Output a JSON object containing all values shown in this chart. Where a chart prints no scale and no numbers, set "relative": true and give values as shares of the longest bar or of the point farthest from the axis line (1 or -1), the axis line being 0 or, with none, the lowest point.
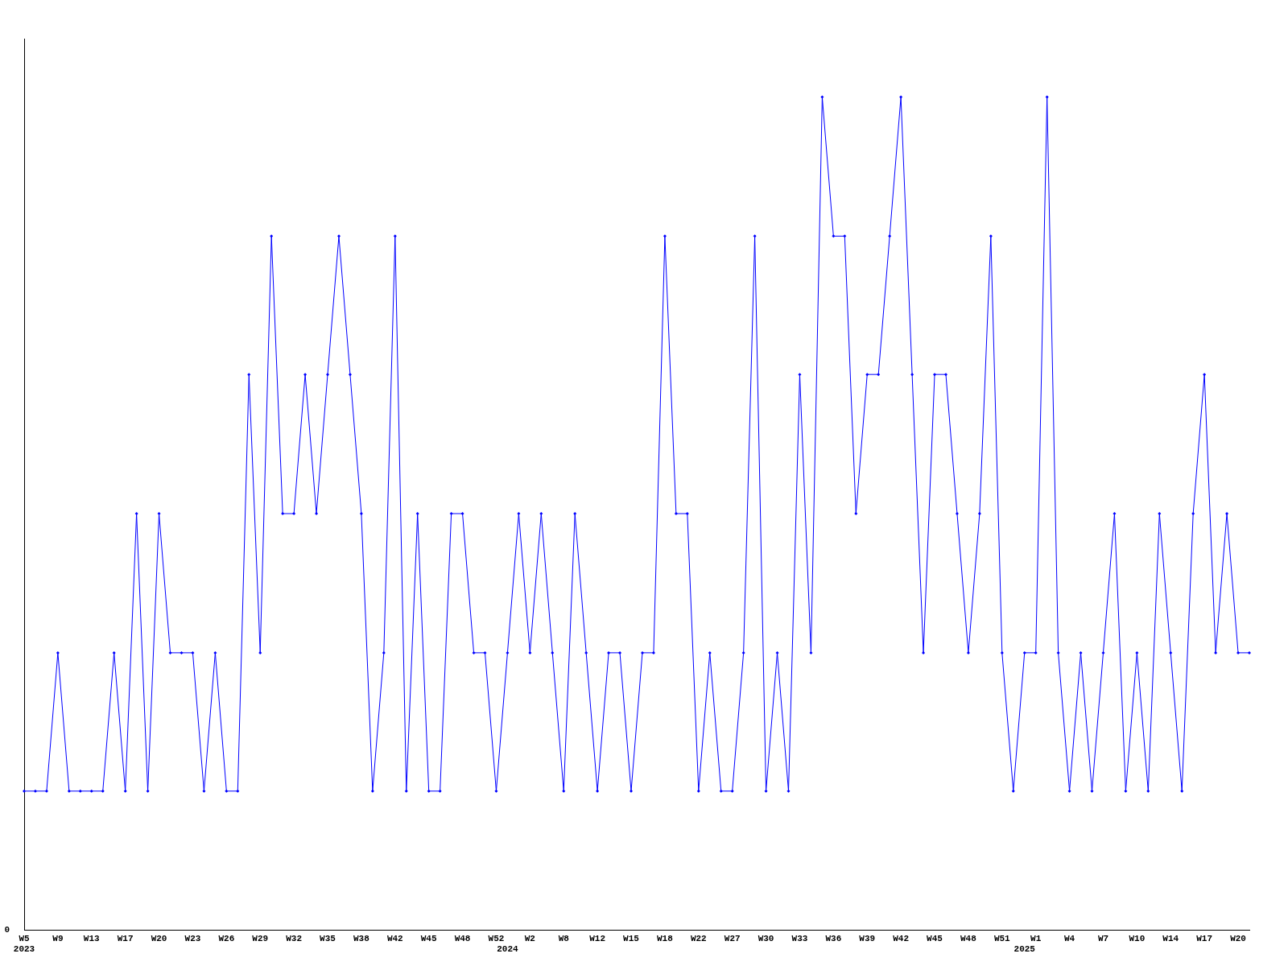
{
  "chart_data": {
    "type": "line",
    "relative": true,
    "color": "#0000ff",
    "marker": "diamond",
    "line_style": "solid",
    "grid": false,
    "legend": false,
    "categories": [
      "W5\n2023",
      null,
      null,
      "W9",
      null,
      null,
      "W13",
      null,
      null,
      "W17",
      null,
      null,
      "W20",
      null,
      null,
      "W23",
      null,
      null,
      "W26",
      null,
      null,
      "W29",
      null,
      null,
      "W32",
      null,
      null,
      "W35",
      null,
      null,
      "W38",
      null,
      null,
      "W42",
      null,
      null,
      "W45",
      null,
      null,
      "W48",
      null,
      null,
      "W52",
      "\n2024",
      null,
      "W2",
      null,
      null,
      "W8",
      null,
      null,
      "W12",
      null,
      null,
      "W15",
      null,
      null,
      "W18",
      null,
      null,
      "W22",
      null,
      null,
      "W27",
      null,
      null,
      "W30",
      null,
      null,
      "W33",
      null,
      null,
      "W36",
      null,
      null,
      "W39",
      null,
      null,
      "W42",
      null,
      null,
      "W45",
      null,
      null,
      "W48",
      null,
      null,
      "W51",
      null,
      "\n2025",
      "W1",
      null,
      null,
      "W4",
      null,
      null,
      "W7",
      null,
      null,
      "W10",
      null,
      null,
      "W14",
      null,
      null,
      "W17",
      null,
      null,
      "W20",
      null
    ],
    "values": [
      0.167,
      0.167,
      0.167,
      0.333,
      0.167,
      0.167,
      0.167,
      0.167,
      0.333,
      0.167,
      0.5,
      0.167,
      0.5,
      0.333,
      0.333,
      0.333,
      0.167,
      0.333,
      0.167,
      0.167,
      0.667,
      0.333,
      0.833,
      0.5,
      0.5,
      0.667,
      0.5,
      0.667,
      0.833,
      0.667,
      0.5,
      0.167,
      0.333,
      0.833,
      0.167,
      0.5,
      0.167,
      0.167,
      0.5,
      0.5,
      0.333,
      0.333,
      0.167,
      0.333,
      0.5,
      0.333,
      0.5,
      0.333,
      0.167,
      0.5,
      0.333,
      0.167,
      0.333,
      0.333,
      0.167,
      0.333,
      0.333,
      0.833,
      0.5,
      0.5,
      0.167,
      0.333,
      0.167,
      0.167,
      0.333,
      0.833,
      0.167,
      0.333,
      0.167,
      0.667,
      0.333,
      1,
      0.833,
      0.833,
      0.5,
      0.667,
      0.667,
      0.833,
      1,
      0.667,
      0.333,
      0.667,
      0.667,
      0.5,
      0.333,
      0.5,
      0.833,
      0.333,
      0.167,
      0.333,
      0.333,
      1,
      0.333,
      0.167,
      0.333,
      0.167,
      0.333,
      0.5,
      0.167,
      0.333,
      0.167,
      0.5,
      0.333,
      0.167,
      0.5,
      0.667,
      0.333,
      0.5,
      0.333,
      0.333
    ],
    "annotations": [
      "0"
    ]
  }
}
